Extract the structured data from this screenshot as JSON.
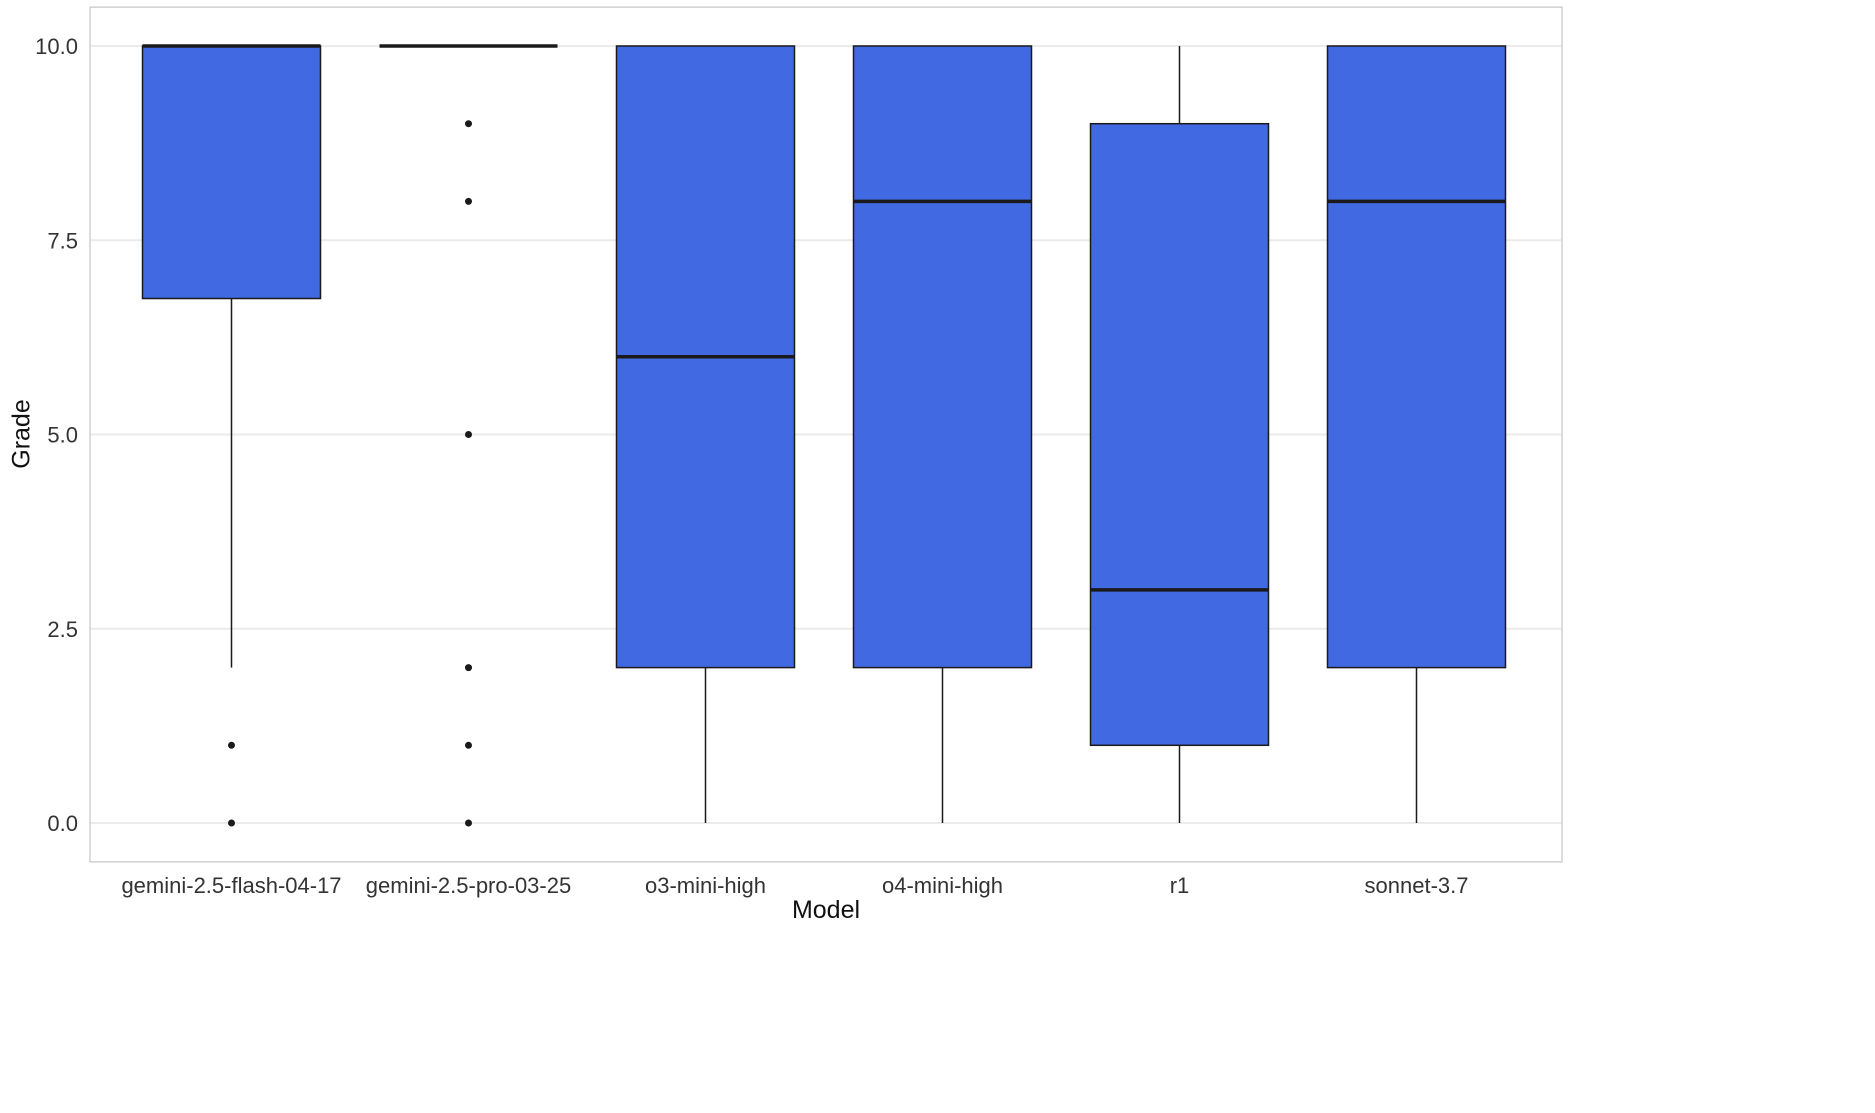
{
  "chart_data": {
    "type": "boxplot",
    "title": "",
    "xlabel": "Model",
    "ylabel": "Grade",
    "ylim": [
      0,
      10
    ],
    "yticks": [
      0,
      2.5,
      5,
      7.5,
      10
    ],
    "ytick_labels": [
      "0.0",
      "2.5",
      "5.0",
      "7.5",
      "10.0"
    ],
    "grid": "horizontal-major-only",
    "legend": "none",
    "panel_background": "#FFFFFF",
    "panel_border_color": "#D0D0D0",
    "gridline_color": "#EBEBEB",
    "box_fill": "#4169E1",
    "box_stroke": "#1A1A1A",
    "outlier_color": "#1A1A1A",
    "tick_label_color": "#333333",
    "categories": [
      "gemini-2.5-flash-04-17",
      "gemini-2.5-pro-03-25",
      "o3-mini-high",
      "o4-mini-high",
      "r1",
      "sonnet-3.7"
    ],
    "series": [
      {
        "name": "gemini-2.5-flash-04-17",
        "whisker_low": 2,
        "q1": 6.75,
        "median": 10,
        "q3": 10,
        "whisker_high": 10,
        "outliers": [
          1,
          0
        ]
      },
      {
        "name": "gemini-2.5-pro-03-25",
        "whisker_low": 10,
        "q1": 10,
        "median": 10,
        "q3": 10,
        "whisker_high": 10,
        "outliers": [
          9,
          8,
          5,
          2,
          1,
          0
        ]
      },
      {
        "name": "o3-mini-high",
        "whisker_low": 0,
        "q1": 2,
        "median": 6,
        "q3": 10,
        "whisker_high": 10,
        "outliers": []
      },
      {
        "name": "o4-mini-high",
        "whisker_low": 0,
        "q1": 2,
        "median": 8,
        "q3": 10,
        "whisker_high": 10,
        "outliers": []
      },
      {
        "name": "r1",
        "whisker_low": 0,
        "q1": 1,
        "median": 3,
        "q3": 9,
        "whisker_high": 10,
        "outliers": []
      },
      {
        "name": "sonnet-3.7",
        "whisker_low": 0,
        "q1": 2,
        "median": 8,
        "q3": 10,
        "whisker_high": 10,
        "outliers": []
      }
    ]
  }
}
